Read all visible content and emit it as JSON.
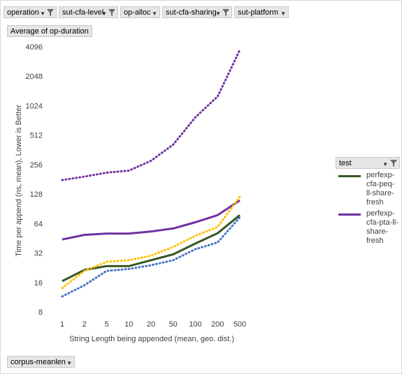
{
  "filters": [
    {
      "label": "operation",
      "filtered": true
    },
    {
      "label": "sut-cfa-level",
      "filtered": true
    },
    {
      "label": "op-alloc",
      "filtered": false
    },
    {
      "label": "sut-cfa-sharing",
      "filtered": true
    },
    {
      "label": "sut-platform",
      "filtered": false
    }
  ],
  "values_field": "Average of op-duration",
  "axis_field": "corpus-meanlen",
  "legend": {
    "title": "test",
    "items": [
      {
        "label": "perfexp-cfa-peq-ll-share-fresh",
        "color": "#375623"
      },
      {
        "label": "perfexp-cfa-pta-ll-share-fresh",
        "color": "#7030a0"
      }
    ]
  },
  "chart_data": {
    "type": "line",
    "categories": [
      "1",
      "2",
      "5",
      "10",
      "20",
      "50",
      "100",
      "200",
      "500"
    ],
    "xlabel": "String Length being appended (mean, geo. dist.)",
    "ylabel": "Time per append (ns, mean),  Lower is Better",
    "yscale": "log2",
    "yticks": [
      8,
      16,
      32,
      64,
      128,
      256,
      512,
      1024,
      2048,
      4096
    ],
    "ylim": [
      8,
      4096
    ],
    "grid": false,
    "legend_position": "right",
    "series": [
      {
        "name": "perfexp-cfa-peq-ll-share-fresh",
        "color": "#375623",
        "style": "solid",
        "values": [
          16.5,
          21.5,
          23.5,
          23.5,
          27,
          31,
          40,
          51,
          78
        ]
      },
      {
        "name": "perfexp-cfa-pta-ll-share-fresh",
        "color": "#7030a0",
        "style": "solid",
        "values": [
          44,
          49,
          50.5,
          50.5,
          53,
          57,
          66,
          78,
          110
        ]
      },
      {
        "color": "#ffc000",
        "style": "dotted",
        "values": [
          14,
          21,
          26,
          27,
          30,
          37,
          48,
          59,
          120
        ]
      },
      {
        "color": "#4472c4",
        "style": "dotted",
        "values": [
          11.5,
          15,
          21,
          22,
          24,
          27,
          35,
          41,
          74
        ]
      },
      {
        "color": "#7030a0",
        "style": "dotted",
        "values": [
          178,
          193,
          212,
          222,
          280,
          410,
          780,
          1270,
          3800
        ]
      }
    ]
  }
}
